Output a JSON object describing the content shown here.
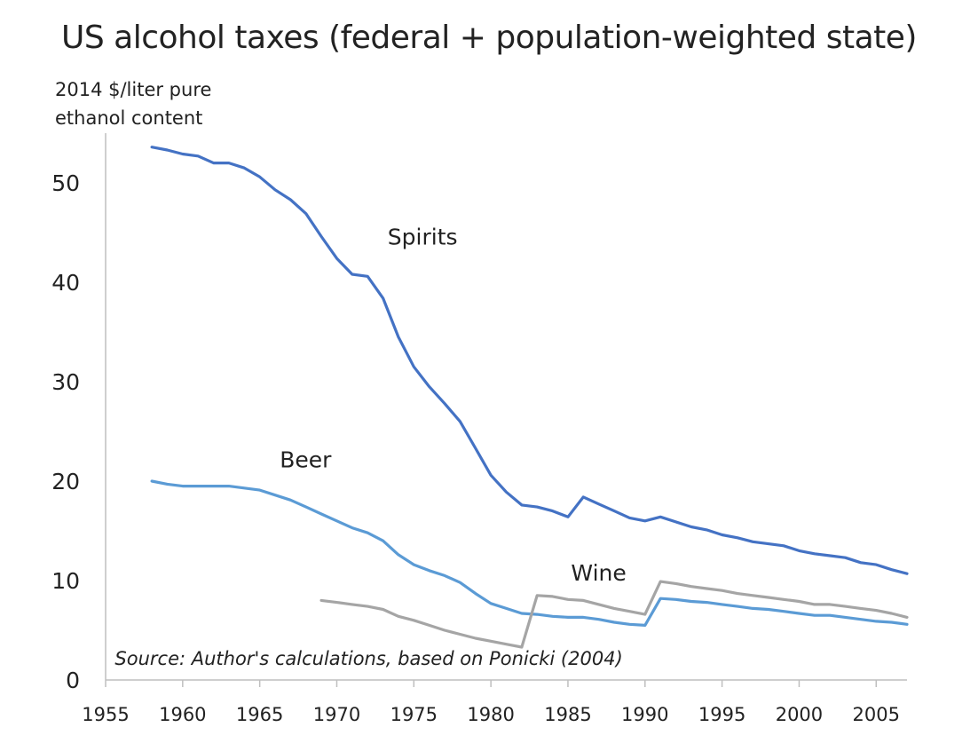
{
  "chart_data": {
    "type": "line",
    "title": "US alcohol taxes (federal + population-weighted state)",
    "ylabel": "2014 $/liter pure ethanol content",
    "xlabel": "",
    "xlim": [
      1955,
      2007
    ],
    "ylim": [
      0,
      55
    ],
    "xticks": [
      1955,
      1960,
      1965,
      1970,
      1975,
      1980,
      1985,
      1990,
      1995,
      2000,
      2005
    ],
    "yticks": [
      0,
      10,
      20,
      30,
      40,
      50
    ],
    "grid": false,
    "annotation": "Source: Author's calculations,  based on Ponicki (2004)",
    "series": [
      {
        "name": "Spirits",
        "color": "#4472C4",
        "x": [
          1958,
          1959,
          1960,
          1961,
          1962,
          1963,
          1964,
          1965,
          1966,
          1967,
          1968,
          1969,
          1970,
          1971,
          1972,
          1973,
          1974,
          1975,
          1976,
          1977,
          1978,
          1979,
          1980,
          1981,
          1982,
          1983,
          1984,
          1985,
          1986,
          1987,
          1988,
          1989,
          1990,
          1991,
          1992,
          1993,
          1994,
          1995,
          1996,
          1997,
          1998,
          1999,
          2000,
          2001,
          2002,
          2003,
          2004,
          2005,
          2006,
          2007
        ],
        "values": [
          53.6,
          53.3,
          52.9,
          52.7,
          52.0,
          52.0,
          51.5,
          50.6,
          49.3,
          48.3,
          46.9,
          44.6,
          42.4,
          40.8,
          40.6,
          38.4,
          34.5,
          31.5,
          29.5,
          27.8,
          26.0,
          23.3,
          20.6,
          18.9,
          17.6,
          17.4,
          17.0,
          16.4,
          18.4,
          17.7,
          17.0,
          16.3,
          16.0,
          16.4,
          15.9,
          15.4,
          15.1,
          14.6,
          14.3,
          13.9,
          13.7,
          13.5,
          13.0,
          12.7,
          12.5,
          12.3,
          11.8,
          11.6,
          11.1,
          10.7
        ]
      },
      {
        "name": "Beer",
        "color": "#5B9BD5",
        "x": [
          1958,
          1959,
          1960,
          1961,
          1962,
          1963,
          1964,
          1965,
          1966,
          1967,
          1968,
          1969,
          1970,
          1971,
          1972,
          1973,
          1974,
          1975,
          1976,
          1977,
          1978,
          1979,
          1980,
          1981,
          1982,
          1983,
          1984,
          1985,
          1986,
          1987,
          1988,
          1989,
          1990,
          1991,
          1992,
          1993,
          1994,
          1995,
          1996,
          1997,
          1998,
          1999,
          2000,
          2001,
          2002,
          2003,
          2004,
          2005,
          2006,
          2007
        ],
        "values": [
          20.0,
          19.7,
          19.5,
          19.5,
          19.5,
          19.5,
          19.3,
          19.1,
          18.6,
          18.1,
          17.4,
          16.7,
          16.0,
          15.3,
          14.8,
          14.0,
          12.6,
          11.6,
          11.0,
          10.5,
          9.8,
          8.7,
          7.7,
          7.2,
          6.7,
          6.6,
          6.4,
          6.3,
          6.3,
          6.1,
          5.8,
          5.6,
          5.5,
          8.2,
          8.1,
          7.9,
          7.8,
          7.6,
          7.4,
          7.2,
          7.1,
          6.9,
          6.7,
          6.5,
          6.5,
          6.3,
          6.1,
          5.9,
          5.8,
          5.6
        ]
      },
      {
        "name": "Wine",
        "color": "#A5A5A5",
        "x": [
          1969,
          1970,
          1971,
          1972,
          1973,
          1974,
          1975,
          1976,
          1977,
          1978,
          1979,
          1980,
          1981,
          1982,
          1983,
          1984,
          1985,
          1986,
          1987,
          1988,
          1989,
          1990,
          1991,
          1992,
          1993,
          1994,
          1995,
          1996,
          1997,
          1998,
          1999,
          2000,
          2001,
          2002,
          2003,
          2004,
          2005,
          2006,
          2007
        ],
        "values": [
          8.0,
          7.8,
          7.6,
          7.4,
          7.1,
          6.4,
          6.0,
          5.5,
          5.0,
          4.6,
          4.2,
          3.9,
          3.6,
          3.3,
          8.5,
          8.4,
          8.1,
          8.0,
          7.6,
          7.2,
          6.9,
          6.6,
          9.9,
          9.7,
          9.4,
          9.2,
          9.0,
          8.7,
          8.5,
          8.3,
          8.1,
          7.9,
          7.6,
          7.6,
          7.4,
          7.2,
          7.0,
          6.7,
          6.3
        ]
      }
    ],
    "series_labels": [
      {
        "series": "Spirits",
        "x": 1973.3,
        "y": 43.8
      },
      {
        "series": "Beer",
        "x": 1966.3,
        "y": 21.4
      },
      {
        "series": "Wine",
        "x": 1985.2,
        "y": 10.0
      }
    ],
    "annotation_anchor": {
      "x": 1955.6,
      "y": 1.5
    }
  }
}
